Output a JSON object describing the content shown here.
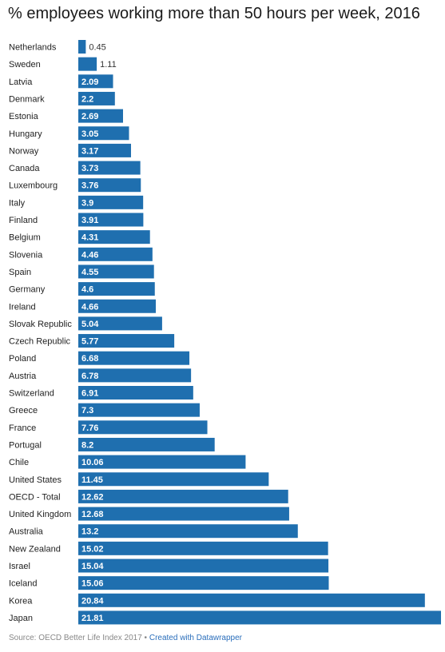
{
  "chart_data": {
    "type": "bar",
    "orientation": "horizontal",
    "title": "% employees working more than 50 hours per week, 2016",
    "categories": [
      "Netherlands",
      "Sweden",
      "Latvia",
      "Denmark",
      "Estonia",
      "Hungary",
      "Norway",
      "Canada",
      "Luxembourg",
      "Italy",
      "Finland",
      "Belgium",
      "Slovenia",
      "Spain",
      "Germany",
      "Ireland",
      "Slovak Republic",
      "Czech Republic",
      "Poland",
      "Austria",
      "Switzerland",
      "Greece",
      "France",
      "Portugal",
      "Chile",
      "United States",
      "OECD - Total",
      "United Kingdom",
      "Australia",
      "New Zealand",
      "Israel",
      "Iceland",
      "Korea",
      "Japan"
    ],
    "values": [
      0.45,
      1.11,
      2.09,
      2.2,
      2.69,
      3.05,
      3.17,
      3.73,
      3.76,
      3.9,
      3.91,
      4.31,
      4.46,
      4.55,
      4.6,
      4.66,
      5.04,
      5.77,
      6.68,
      6.78,
      6.91,
      7.3,
      7.76,
      8.2,
      10.06,
      11.45,
      12.62,
      12.68,
      13.2,
      15.02,
      15.04,
      15.06,
      20.84,
      21.81
    ],
    "value_labels": [
      "0.45",
      "1.11",
      "2.09",
      "2.2",
      "2.69",
      "3.05",
      "3.17",
      "3.73",
      "3.76",
      "3.9",
      "3.91",
      "4.31",
      "4.46",
      "4.55",
      "4.6",
      "4.66",
      "5.04",
      "5.77",
      "6.68",
      "6.78",
      "6.91",
      "7.3",
      "7.76",
      "8.2",
      "10.06",
      "11.45",
      "12.62",
      "12.68",
      "13.2",
      "15.02",
      "15.04",
      "15.06",
      "20.84",
      "21.81"
    ],
    "xlim": [
      0,
      21.81
    ],
    "grid": false,
    "legend": "none",
    "bar_color": "#1f6faf"
  },
  "footer": {
    "source": "Source: OECD Better Life Index 2017",
    "separator": "•",
    "credit": "Created with Datawrapper"
  }
}
